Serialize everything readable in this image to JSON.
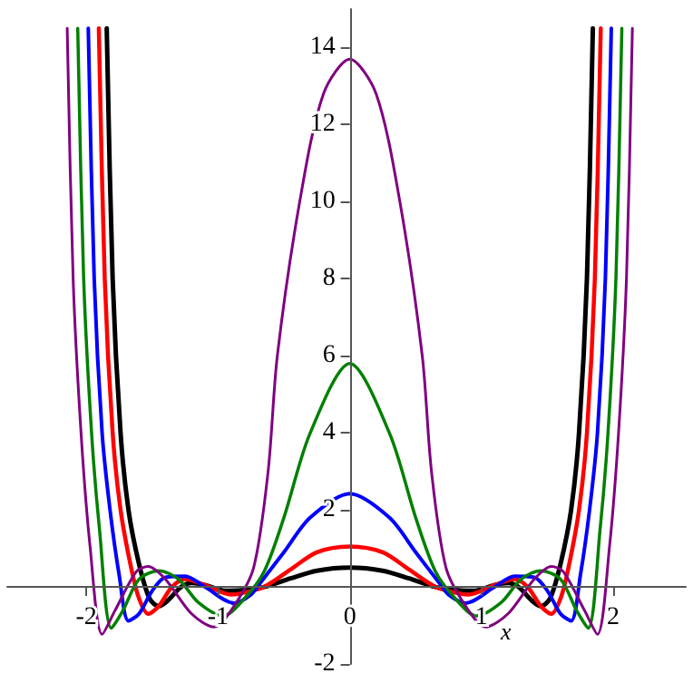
{
  "chart_data": {
    "type": "line",
    "xlabel": "x",
    "xlim": [
      -2.6,
      2.55
    ],
    "ylim": [
      -2,
      15
    ],
    "xticks": [
      -2,
      -1,
      0,
      1,
      2
    ],
    "yticks": [
      -2,
      2,
      4,
      6,
      8,
      10,
      12,
      14
    ],
    "grid": false,
    "marker": "none",
    "line_style": "solid",
    "series": [
      {
        "color": "#000000",
        "x": [
          -1.845,
          -1.8,
          -1.74,
          -1.68,
          -1.6,
          -1.52,
          -1.45,
          -1.38,
          -1.28,
          -1.2,
          -1.1,
          -0.95,
          -0.8,
          -0.65,
          -0.45,
          -0.25,
          0,
          0.25,
          0.45,
          0.65,
          0.8,
          0.95,
          1.1,
          1.2,
          1.28,
          1.38,
          1.45,
          1.52,
          1.6,
          1.68,
          1.74,
          1.8,
          1.845
        ],
        "values": [
          14.5,
          8,
          4,
          2,
          0.6,
          -0.3,
          -0.5,
          -0.35,
          0,
          0.1,
          0.05,
          -0.1,
          -0.08,
          0,
          0.22,
          0.42,
          0.5,
          0.42,
          0.22,
          0,
          -0.08,
          -0.1,
          0.05,
          0.1,
          0,
          -0.35,
          -0.5,
          -0.3,
          0.6,
          2,
          4,
          8,
          14.5
        ]
      },
      {
        "color": "#ff0000",
        "x": [
          -1.905,
          -1.86,
          -1.8,
          -1.74,
          -1.66,
          -1.6,
          -1.53,
          -1.45,
          -1.35,
          -1.25,
          -1.1,
          -0.9,
          -0.8,
          -0.65,
          -0.45,
          -0.25,
          0,
          0.25,
          0.45,
          0.65,
          0.8,
          0.9,
          1.1,
          1.25,
          1.35,
          1.45,
          1.53,
          1.6,
          1.66,
          1.74,
          1.8,
          1.86,
          1.905
        ],
        "values": [
          14.5,
          8,
          4,
          2,
          0.5,
          -0.3,
          -0.7,
          -0.5,
          0,
          0.2,
          0.05,
          -0.2,
          -0.15,
          0,
          0.45,
          0.9,
          1.05,
          0.9,
          0.45,
          0,
          -0.15,
          -0.2,
          0.05,
          0.2,
          0,
          -0.5,
          -0.7,
          -0.3,
          0.5,
          2,
          4,
          8,
          14.5
        ]
      },
      {
        "color": "#0000ff",
        "x": [
          -1.985,
          -1.94,
          -1.88,
          -1.82,
          -1.75,
          -1.68,
          -1.6,
          -1.5,
          -1.4,
          -1.25,
          -1.1,
          -0.88,
          -0.75,
          -0.68,
          -0.5,
          -0.3,
          0,
          0.3,
          0.5,
          0.68,
          0.75,
          0.88,
          1.1,
          1.25,
          1.4,
          1.5,
          1.6,
          1.68,
          1.75,
          1.82,
          1.88,
          1.94,
          1.985
        ],
        "values": [
          14.5,
          8,
          4,
          2,
          0.3,
          -0.88,
          -0.7,
          -0.1,
          0.25,
          0.28,
          0,
          -0.42,
          -0.2,
          0.1,
          0.9,
          1.8,
          2.42,
          1.8,
          0.9,
          0.1,
          -0.2,
          -0.42,
          0,
          0.28,
          0.25,
          -0.1,
          -0.7,
          -0.88,
          0.3,
          2,
          4,
          8,
          14.5
        ]
      },
      {
        "color": "#008000",
        "x": [
          -2.065,
          -2.02,
          -1.96,
          -1.9,
          -1.81,
          -1.72,
          -1.6,
          -1.45,
          -1.3,
          -1.15,
          -0.96,
          -0.8,
          -0.65,
          -0.5,
          -0.3,
          0,
          0.3,
          0.5,
          0.65,
          0.8,
          0.96,
          1.15,
          1.3,
          1.45,
          1.6,
          1.72,
          1.81,
          1.9,
          1.96,
          2.02,
          2.065
        ],
        "values": [
          14.5,
          8,
          4,
          1.5,
          -1.07,
          -0.6,
          0.2,
          0.42,
          0.2,
          -0.4,
          -0.75,
          -0.3,
          0.4,
          1.8,
          4,
          5.8,
          4,
          1.8,
          0.4,
          -0.3,
          -0.75,
          -0.4,
          0.2,
          0.42,
          0.2,
          -0.6,
          -1.07,
          1.5,
          4,
          8,
          14.5
        ]
      },
      {
        "color": "#800080",
        "x": [
          -2.145,
          -2.1,
          -2.04,
          -1.97,
          -1.88,
          -1.78,
          -1.62,
          -1.53,
          -1.4,
          -1.2,
          -1.03,
          -0.88,
          -0.73,
          -0.62,
          -0.55,
          -0.38,
          -0.2,
          0,
          0.2,
          0.38,
          0.55,
          0.62,
          0.73,
          0.88,
          1.03,
          1.2,
          1.4,
          1.53,
          1.62,
          1.78,
          1.88,
          1.97,
          2.04,
          2.1,
          2.145
        ],
        "values": [
          14.5,
          8,
          4,
          1,
          -1.23,
          -0.6,
          0.4,
          0.53,
          0.2,
          -0.7,
          -1.04,
          -0.5,
          0.5,
          3,
          6,
          10,
          12.8,
          13.7,
          12.8,
          10,
          6,
          3,
          0.5,
          -0.5,
          -1.04,
          -0.7,
          0.2,
          0.53,
          0.4,
          -0.6,
          -1.23,
          1,
          4,
          8,
          14.5
        ]
      }
    ]
  }
}
